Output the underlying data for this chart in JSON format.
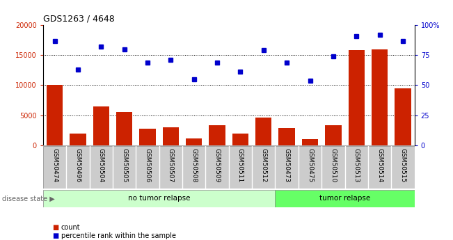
{
  "title": "GDS1263 / 4648",
  "categories": [
    "GSM50474",
    "GSM50496",
    "GSM50504",
    "GSM50505",
    "GSM50506",
    "GSM50507",
    "GSM50508",
    "GSM50509",
    "GSM50511",
    "GSM50512",
    "GSM50473",
    "GSM50475",
    "GSM50510",
    "GSM50513",
    "GSM50514",
    "GSM50515"
  ],
  "counts": [
    10000,
    1900,
    6500,
    5500,
    2800,
    3000,
    1100,
    3300,
    1900,
    4600,
    2900,
    1000,
    3300,
    15900,
    16000,
    9500
  ],
  "percentiles": [
    87,
    63,
    82,
    80,
    69,
    71,
    55,
    69,
    61,
    79,
    69,
    54,
    74,
    91,
    92,
    87
  ],
  "no_tumor_count": 10,
  "tumor_count": 6,
  "bar_color": "#cc2200",
  "dot_color": "#0000cc",
  "left_axis_color": "#cc2200",
  "right_axis_color": "#0000cc",
  "ylim_left": [
    0,
    20000
  ],
  "ylim_right": [
    0,
    100
  ],
  "yticks_left": [
    0,
    5000,
    10000,
    15000,
    20000
  ],
  "ytick_labels_left": [
    "0",
    "5000",
    "10000",
    "15000",
    "20000"
  ],
  "yticks_right": [
    0,
    25,
    50,
    75,
    100
  ],
  "ytick_labels_right": [
    "0",
    "25",
    "50",
    "75",
    "100%"
  ],
  "no_tumor_label": "no tumor relapse",
  "tumor_label": "tumor relapse",
  "disease_state_label": "disease state",
  "legend_count_label": "count",
  "legend_percentile_label": "percentile rank within the sample",
  "no_tumor_color": "#ccffcc",
  "tumor_color": "#66ff66",
  "tick_bg_color": "#cccccc",
  "bar_width": 0.7,
  "grid_yticks": [
    5000,
    10000,
    15000
  ]
}
